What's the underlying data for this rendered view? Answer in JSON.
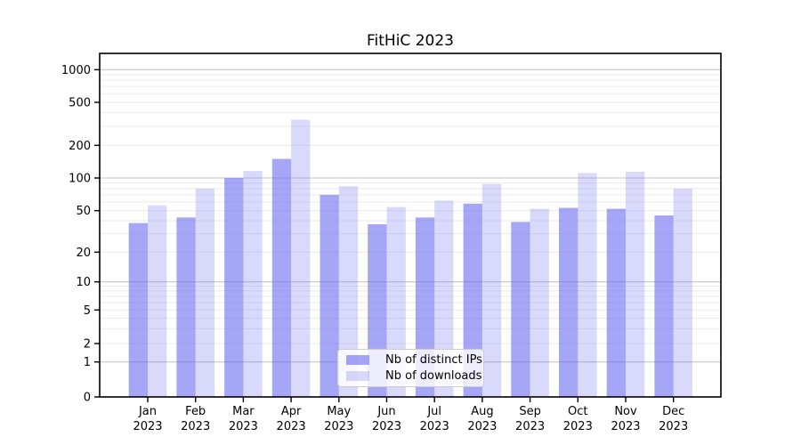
{
  "chart_data": {
    "type": "bar",
    "title": "FitHiC 2023",
    "categories": [
      "Jan",
      "Feb",
      "Mar",
      "Apr",
      "May",
      "Jun",
      "Jul",
      "Aug",
      "Sep",
      "Oct",
      "Nov",
      "Dec"
    ],
    "x_year": "2023",
    "series": [
      {
        "name": "Nb of distinct IPs",
        "color": "rgba(107,107,240,0.60)",
        "values": [
          38,
          43,
          100,
          150,
          70,
          37,
          43,
          58,
          39,
          53,
          52,
          45
        ]
      },
      {
        "name": "Nb of downloads",
        "color": "rgba(107,107,240,0.26)",
        "values": [
          56,
          80,
          116,
          345,
          84,
          54,
          62,
          88,
          52,
          111,
          114,
          80
        ]
      }
    ],
    "y_ticks": [
      0,
      1,
      2,
      5,
      10,
      20,
      50,
      100,
      200,
      500,
      1000
    ],
    "y_scale": "symlog-base10",
    "ylim": [
      0,
      1400
    ],
    "grid": true,
    "legend_position": "lower center"
  },
  "colors": {
    "bars_base": "#6b6bf0",
    "major_grid": "#c6c6c6",
    "minor_grid": "#ebebeb",
    "axis": "#000000"
  }
}
